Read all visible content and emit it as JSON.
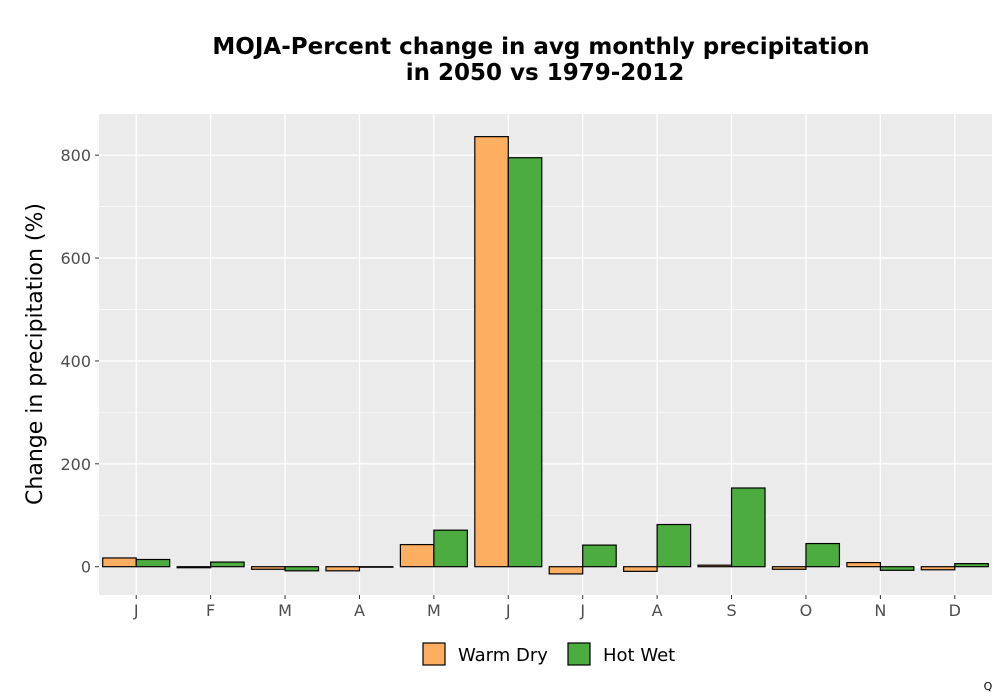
{
  "chart_data": {
    "type": "bar",
    "title": [
      "MOJA-Percent change in avg monthly precipitation",
      "in 2050 vs 1979-2012"
    ],
    "xlabel": "",
    "ylabel": "Change in precipitation (%)",
    "categories": [
      "J",
      "F",
      "M",
      "A",
      "M",
      "J",
      "J",
      "A",
      "S",
      "O",
      "N",
      "D"
    ],
    "series": [
      {
        "name": "Warm Dry",
        "color": "#FDAE61",
        "values": [
          17,
          -2,
          -5,
          -8,
          43,
          836,
          -14,
          -9,
          3,
          -5,
          8,
          -6
        ]
      },
      {
        "name": "Hot Wet",
        "color": "#4DAC3F",
        "values": [
          14,
          9,
          -8,
          0,
          71,
          795,
          42,
          82,
          153,
          45,
          -7,
          6
        ]
      }
    ],
    "ylim": [
      -55,
      880
    ],
    "yticks": [
      0,
      200,
      400,
      600,
      800
    ],
    "grid": true,
    "legend_position": "bottom",
    "panel_color": "#EBEBEB"
  },
  "footnote": "Q"
}
